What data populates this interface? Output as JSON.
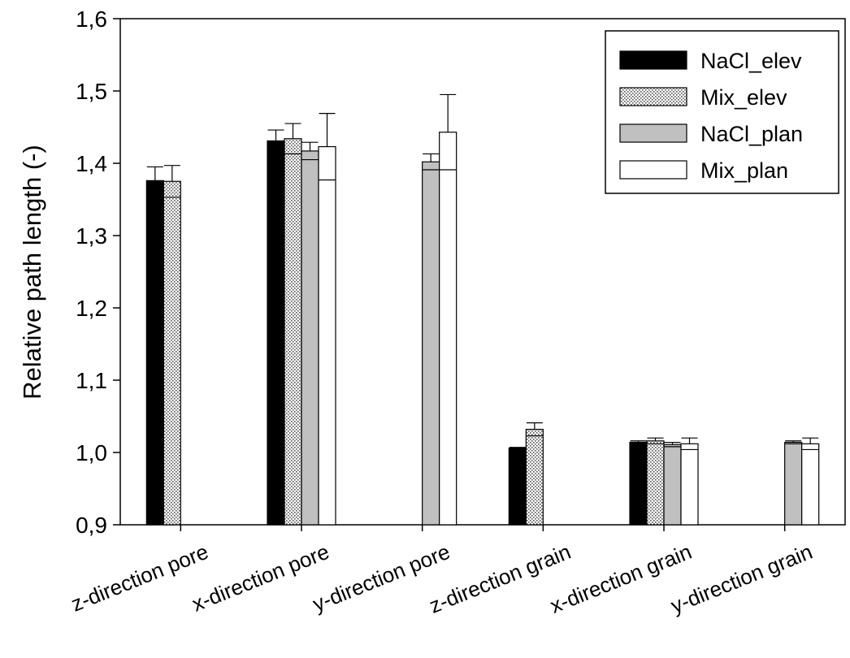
{
  "chart_data": {
    "type": "bar",
    "title": "",
    "xlabel": "",
    "ylabel": "Relative path length (-)",
    "ylim": [
      0.9,
      1.6
    ],
    "yticks": [
      "0,9",
      "1,0",
      "1,1",
      "1,2",
      "1,3",
      "1,4",
      "1,5",
      "1,6"
    ],
    "ytick_values": [
      0.9,
      1.0,
      1.1,
      1.2,
      1.3,
      1.4,
      1.5,
      1.6
    ],
    "categories": [
      "z-direction pore",
      "x-direction pore",
      "y-direction pore",
      "z-direction grain",
      "x-direction grain",
      "y-direction grain"
    ],
    "legend_position": "top-right",
    "series": [
      {
        "name": "NaCl_elev",
        "pattern": "solid-black",
        "color": "#000000",
        "values": [
          1.376,
          1.431,
          null,
          1.006,
          1.014,
          null
        ],
        "errors": [
          0.019,
          0.015,
          null,
          0.001,
          0.002,
          null
        ]
      },
      {
        "name": "Mix_elev",
        "pattern": "dotted",
        "color": "#d9d9d9",
        "values": [
          1.375,
          1.434,
          null,
          1.032,
          1.016,
          null
        ],
        "errors": [
          0.022,
          0.021,
          null,
          0.009,
          0.004,
          null
        ]
      },
      {
        "name": "NaCl_plan",
        "pattern": "solid-gray",
        "color": "#c0c0c0",
        "values": [
          null,
          1.417,
          1.402,
          null,
          1.011,
          1.014
        ],
        "errors": [
          null,
          0.012,
          0.011,
          null,
          0.003,
          0.002
        ]
      },
      {
        "name": "Mix_plan",
        "pattern": "white",
        "color": "#ffffff",
        "values": [
          null,
          1.423,
          1.443,
          null,
          1.012,
          1.012
        ],
        "errors": [
          null,
          0.046,
          0.052,
          null,
          0.008,
          0.008
        ]
      }
    ]
  }
}
